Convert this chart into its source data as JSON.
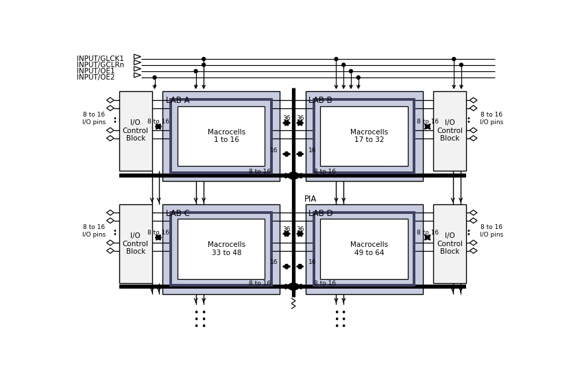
{
  "input_labels": [
    "INPUT/GLCK1",
    "INPUT/GCLRn",
    "INPUT/OE1",
    "INPUT/OE2"
  ],
  "lab_names": [
    "LAB A",
    "LAB B",
    "LAB C",
    "LAB D"
  ],
  "mc_labels": [
    "Macrocells\n1 to 16",
    "Macrocells\n17 to 32",
    "Macrocells\n33 to 48",
    "Macrocells\n49 to 64"
  ],
  "pia_label": "PIA",
  "io_block_label": "I/O\nControl\nBlock",
  "io_pins_label": "8 to 16\nI/O pins",
  "lab_fill": "#c8cce0",
  "io_fill": "#f2f2f2",
  "bg_color": "#ffffff",
  "font_size": 7.5,
  "font_size_sm": 6.5,
  "font_size_lab": 8.5
}
